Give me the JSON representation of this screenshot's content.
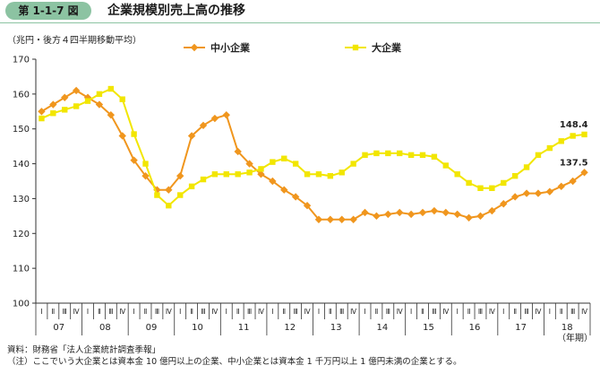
{
  "header": {
    "badge": "第 1-1-7 図",
    "title": "企業規模別売上高の推移"
  },
  "notes": {
    "source": "資料：財務省「法人企業統計調査季報」",
    "note": "（注）ここでいう大企業とは資本金 10 億円以上の企業、中小企業とは資本金 1 千万円以上 1 億円未満の企業とする。"
  },
  "chart_data": {
    "type": "line",
    "ylabel": "（兆円・後方４四半期移動平均）",
    "xlabel": "（年期）",
    "ylim": [
      100,
      170
    ],
    "yticks": [
      100,
      110,
      120,
      130,
      140,
      150,
      160,
      170
    ],
    "grid": false,
    "legend_position": "top",
    "years": [
      "07",
      "08",
      "09",
      "10",
      "11",
      "12",
      "13",
      "14",
      "15",
      "16",
      "17",
      "18"
    ],
    "quarters": [
      "Ⅰ",
      "Ⅱ",
      "Ⅲ",
      "Ⅳ"
    ],
    "series": [
      {
        "name": "中小企業",
        "color": "#f0961e",
        "marker": "diamond",
        "values": [
          155,
          157,
          159,
          161,
          159,
          157,
          154,
          148,
          141,
          136.5,
          132.5,
          132.5,
          136.5,
          148,
          151,
          153,
          154,
          143.5,
          140,
          137,
          135,
          132.5,
          130.5,
          128,
          124,
          124,
          124,
          124,
          126,
          125,
          125.5,
          126,
          125.5,
          126,
          126.5,
          126,
          125.5,
          124.5,
          125,
          126.5,
          128.5,
          130.5,
          131.5,
          131.5,
          132,
          133.5,
          135,
          137.5
        ],
        "end_label": "137.5"
      },
      {
        "name": "大企業",
        "color": "#f2e600",
        "marker": "square",
        "values": [
          153,
          154.5,
          155.5,
          156.5,
          158,
          160,
          161.5,
          158.5,
          148.5,
          140,
          131,
          128,
          131,
          133.5,
          135.5,
          137,
          137,
          137,
          137.5,
          138.5,
          140.5,
          141.5,
          140,
          137,
          137,
          136.5,
          137.5,
          140,
          142.5,
          143,
          143,
          143,
          142.5,
          142.5,
          142,
          139.5,
          137,
          134.5,
          133,
          133,
          134.5,
          136.5,
          139,
          142.5,
          144.5,
          146.5,
          148,
          148.4
        ],
        "end_label": "148.4"
      }
    ]
  }
}
